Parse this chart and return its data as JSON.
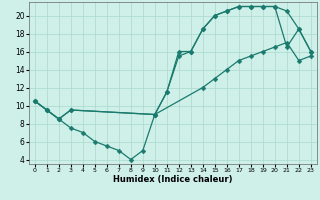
{
  "xlabel": "Humidex (Indice chaleur)",
  "bg_color": "#cff0e8",
  "grid_color": "#a8d8ce",
  "line_color": "#1a7a6e",
  "xlim": [
    -0.5,
    23.5
  ],
  "ylim": [
    3.5,
    21.5
  ],
  "xticks": [
    0,
    1,
    2,
    3,
    4,
    5,
    6,
    7,
    8,
    9,
    10,
    11,
    12,
    13,
    14,
    15,
    16,
    17,
    18,
    19,
    20,
    21,
    22,
    23
  ],
  "yticks": [
    4,
    6,
    8,
    10,
    12,
    14,
    16,
    18,
    20
  ],
  "line1_x": [
    0,
    1,
    2,
    3,
    4,
    5,
    6,
    7,
    8,
    9,
    10,
    11,
    12,
    13,
    14,
    15,
    16,
    17,
    18,
    19,
    20,
    21,
    22,
    23
  ],
  "line1_y": [
    10.5,
    9.5,
    8.5,
    7.5,
    7.0,
    6.0,
    5.5,
    5.0,
    4.0,
    5.0,
    9.0,
    11.5,
    16.0,
    16.0,
    18.5,
    20.0,
    20.5,
    21.0,
    21.0,
    21.0,
    21.0,
    16.5,
    18.5,
    16.0
  ],
  "line2_x": [
    0,
    1,
    2,
    3,
    10,
    11,
    12,
    13,
    14,
    15,
    16,
    17,
    18,
    19,
    20,
    21,
    22,
    23
  ],
  "line2_y": [
    10.5,
    9.5,
    8.5,
    9.5,
    9.0,
    11.5,
    15.5,
    16.0,
    18.5,
    20.0,
    20.5,
    21.0,
    21.0,
    21.0,
    21.0,
    20.5,
    18.5,
    16.0
  ],
  "line3_x": [
    0,
    1,
    2,
    3,
    10,
    14,
    15,
    16,
    17,
    18,
    19,
    20,
    21,
    22,
    23
  ],
  "line3_y": [
    10.5,
    9.5,
    8.5,
    9.5,
    9.0,
    12.0,
    13.0,
    14.0,
    15.0,
    15.5,
    16.0,
    16.5,
    17.0,
    15.0,
    15.5
  ]
}
